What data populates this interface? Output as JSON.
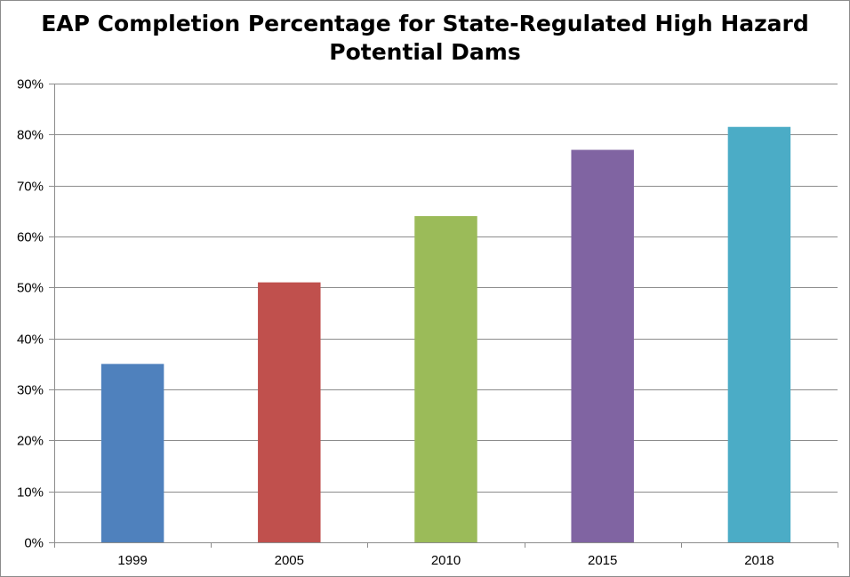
{
  "chart_data": {
    "type": "bar",
    "title": "EAP Completion Percentage for State-Regulated High Hazard Potential Dams",
    "xlabel": "",
    "ylabel": "",
    "categories": [
      "1999",
      "2005",
      "2010",
      "2015",
      "2018"
    ],
    "values": [
      35,
      51,
      64,
      77,
      81.5
    ],
    "bar_colors": [
      "#4f81bd",
      "#c0504d",
      "#9bbb59",
      "#8064a2",
      "#4bacc6"
    ],
    "ylim": [
      0,
      90
    ],
    "yticks": [
      0,
      10,
      20,
      30,
      40,
      50,
      60,
      70,
      80,
      90
    ],
    "ytick_format": "percent",
    "grid": true,
    "legend": "none"
  }
}
